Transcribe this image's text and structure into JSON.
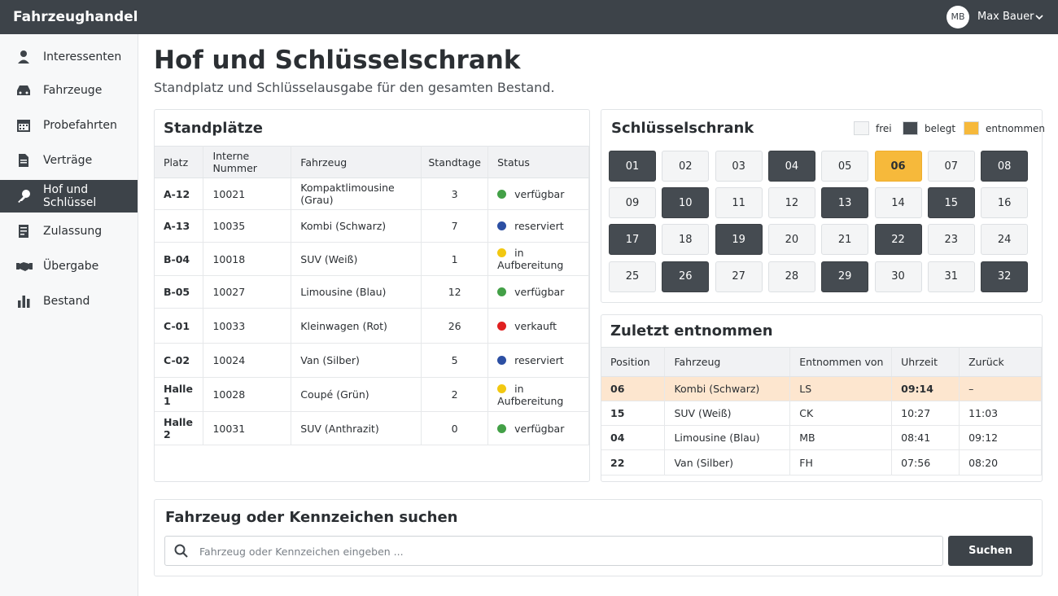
{
  "header": {
    "brand": "Fahrzeughandel",
    "user": {
      "initials": "MB",
      "name": "Max Bauer"
    }
  },
  "nav": [
    "Interessenten",
    "Fahrzeuge",
    "Probefahrten",
    "Verträge",
    "Hof und Schlüssel",
    "Zulassung",
    "Übergabe",
    "Bestand"
  ],
  "page": {
    "title": "Hof und Schlüsselschrank",
    "subtitle": "Standplatz und Schlüsselausgabe für den gesamten Bestand."
  },
  "parking": {
    "title": "Standplätze",
    "columns": [
      "Platz",
      "Interne Nummer",
      "Fahrzeug",
      "Standtage",
      "Status"
    ],
    "rows": [
      [
        "A-12",
        "10021",
        "Kompaktlimousine (Grau)",
        3,
        {
          "label": "verfügbar",
          "color": "#43a047"
        }
      ],
      [
        "A-13",
        "10035",
        "Kombi (Schwarz)",
        7,
        {
          "label": "reserviert",
          "color": "#2c4fa3"
        }
      ],
      [
        "B-04",
        "10018",
        "SUV (Weiß)",
        1,
        {
          "label": "in Aufbereitung",
          "color": "#f2c811"
        }
      ],
      [
        "B-05",
        "10027",
        "Limousine (Blau)",
        12,
        {
          "label": "verfügbar",
          "color": "#43a047"
        }
      ],
      [
        "C-01",
        "10033",
        "Kleinwagen (Rot)",
        26,
        {
          "label": "verkauft",
          "color": "#e02020"
        }
      ],
      [
        "C-02",
        "10024",
        "Van (Silber)",
        5,
        {
          "label": "reserviert",
          "color": "#2c4fa3"
        }
      ],
      [
        "Halle 1",
        "10028",
        "Coupé (Grün)",
        2,
        {
          "label": "in Aufbereitung",
          "color": "#f2c811"
        }
      ],
      [
        "Halle 2",
        "10031",
        "SUV (Anthrazit)",
        0,
        {
          "label": "verfügbar",
          "color": "#43a047"
        }
      ]
    ]
  },
  "key_cabinet": {
    "title": "Schlüsselschrank",
    "legend": [
      {
        "label": "frei",
        "color": "#f4f5f6"
      },
      {
        "label": "belegt",
        "color": "#454b51"
      },
      {
        "label": "entnommen",
        "color": "#f6b93b"
      }
    ],
    "slots": [
      {
        "label": "01",
        "state": "belegt"
      },
      {
        "label": "02",
        "state": "frei"
      },
      {
        "label": "03",
        "state": "frei"
      },
      {
        "label": "04",
        "state": "belegt"
      },
      {
        "label": "05",
        "state": "frei"
      },
      {
        "label": "06",
        "state": "entnommen"
      },
      {
        "label": "07",
        "state": "frei"
      },
      {
        "label": "08",
        "state": "belegt"
      },
      {
        "label": "09",
        "state": "frei"
      },
      {
        "label": "10",
        "state": "belegt"
      },
      {
        "label": "11",
        "state": "frei"
      },
      {
        "label": "12",
        "state": "frei"
      },
      {
        "label": "13",
        "state": "belegt"
      },
      {
        "label": "14",
        "state": "frei"
      },
      {
        "label": "15",
        "state": "belegt"
      },
      {
        "label": "16",
        "state": "frei"
      },
      {
        "label": "17",
        "state": "belegt"
      },
      {
        "label": "18",
        "state": "frei"
      },
      {
        "label": "19",
        "state": "belegt"
      },
      {
        "label": "20",
        "state": "frei"
      },
      {
        "label": "21",
        "state": "frei"
      },
      {
        "label": "22",
        "state": "belegt"
      },
      {
        "label": "23",
        "state": "frei"
      },
      {
        "label": "24",
        "state": "frei"
      },
      {
        "label": "25",
        "state": "frei"
      },
      {
        "label": "26",
        "state": "belegt"
      },
      {
        "label": "27",
        "state": "frei"
      },
      {
        "label": "28",
        "state": "frei"
      },
      {
        "label": "29",
        "state": "belegt"
      },
      {
        "label": "30",
        "state": "frei"
      },
      {
        "label": "31",
        "state": "frei"
      },
      {
        "label": "32",
        "state": "belegt"
      }
    ]
  },
  "recent": {
    "title": "Zuletzt entnommen",
    "columns": [
      "Position",
      "Fahrzeug",
      "Entnommen von",
      "Uhrzeit",
      "Zurück"
    ],
    "rows": [
      [
        "06",
        "Kombi (Schwarz)",
        "LS",
        "09:14",
        "–"
      ],
      [
        "15",
        "SUV (Weiß)",
        "CK",
        "10:27",
        "11:03"
      ],
      [
        "04",
        "Limousine (Blau)",
        "MB",
        "08:41",
        "09:12"
      ],
      [
        "22",
        "Van (Silber)",
        "FH",
        "07:56",
        "08:20"
      ]
    ]
  },
  "search": {
    "title": "Fahrzeug oder Kennzeichen suchen",
    "placeholder": "Fahrzeug oder Kennzeichen eingeben ...",
    "button": "Suchen"
  }
}
